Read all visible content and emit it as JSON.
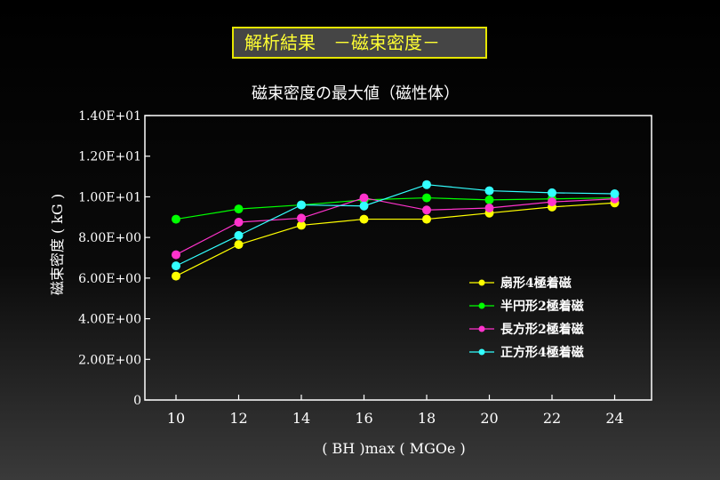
{
  "header": {
    "title": "解析結果　－磁束密度－"
  },
  "chart_data": {
    "type": "line",
    "title": "磁束密度の最大値（磁性体）",
    "xlabel": "( BH )max  ( MGOe )",
    "ylabel": "磁束密度 ( kG )",
    "x": [
      10,
      12,
      14,
      16,
      18,
      20,
      22,
      24
    ],
    "x_tick_labels": [
      "10",
      "12",
      "14",
      "16",
      "18",
      "20",
      "22",
      "24"
    ],
    "ylim": [
      0,
      14
    ],
    "y_ticks": [
      0,
      2,
      4,
      6,
      8,
      10,
      12,
      14
    ],
    "y_tick_labels": [
      "0",
      "2.00E+00",
      "4.00E+00",
      "6.00E+00",
      "8.00E+00",
      "1.00E+01",
      "1.20E+01",
      "1.40E+01"
    ],
    "grid": false,
    "legend_position": "right",
    "series": [
      {
        "name": "扇形4極着磁",
        "color": "#ffff00",
        "values": [
          6.1,
          7.65,
          8.6,
          8.9,
          8.9,
          9.2,
          9.5,
          9.7
        ]
      },
      {
        "name": "半円形2極着磁",
        "color": "#00ff00",
        "values": [
          8.9,
          9.4,
          9.6,
          9.85,
          9.95,
          9.85,
          9.9,
          9.95
        ]
      },
      {
        "name": "長方形2極着磁",
        "color": "#ff33cc",
        "values": [
          7.15,
          8.75,
          8.95,
          9.95,
          9.35,
          9.45,
          9.75,
          9.9
        ]
      },
      {
        "name": "正方形4極着磁",
        "color": "#33ffff",
        "values": [
          6.6,
          8.1,
          9.6,
          9.55,
          10.6,
          10.3,
          10.2,
          10.15
        ]
      }
    ]
  }
}
